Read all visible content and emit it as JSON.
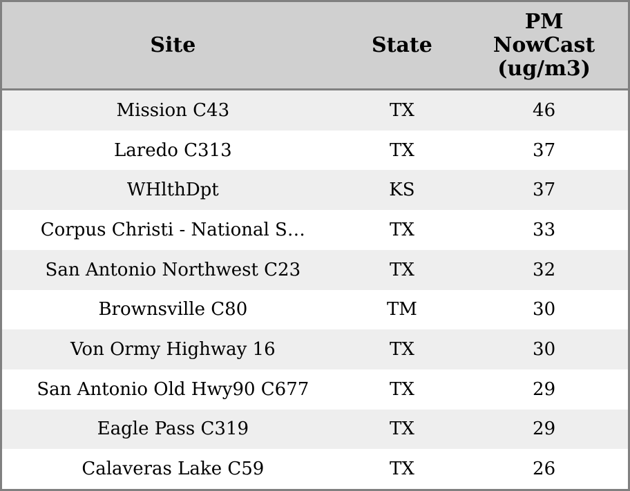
{
  "colors": {
    "border": "#808080",
    "header_bg": "#d0d0d0",
    "stripe": "#eeeeee",
    "row_bg": "#ffffff",
    "text": "#000000"
  },
  "table": {
    "columns": [
      {
        "key": "site",
        "label": "Site",
        "label_lines": [
          "Site"
        ]
      },
      {
        "key": "state",
        "label": "State",
        "label_lines": [
          "State"
        ]
      },
      {
        "key": "pm",
        "label": "PM NowCast (ug/m3)",
        "label_lines": [
          "PM",
          "NowCast",
          "(ug/m3)"
        ]
      }
    ],
    "rows": [
      {
        "site": "Mission C43",
        "state": "TX",
        "pm": "46"
      },
      {
        "site": "Laredo C313",
        "state": "TX",
        "pm": "37"
      },
      {
        "site": "WHlthDpt",
        "state": "KS",
        "pm": "37"
      },
      {
        "site": "Corpus Christi - National S…",
        "state": "TX",
        "pm": "33"
      },
      {
        "site": "San Antonio Northwest C23",
        "state": "TX",
        "pm": "32"
      },
      {
        "site": "Brownsville C80",
        "state": "TM",
        "pm": "30"
      },
      {
        "site": "Von Ormy Highway 16",
        "state": "TX",
        "pm": "30"
      },
      {
        "site": "San Antonio Old Hwy90 C677",
        "state": "TX",
        "pm": "29"
      },
      {
        "site": "Eagle Pass C319",
        "state": "TX",
        "pm": "29"
      },
      {
        "site": "Calaveras Lake C59",
        "state": "TX",
        "pm": "26"
      }
    ]
  },
  "chart_data": {
    "type": "table",
    "title": "",
    "columns": [
      "Site",
      "State",
      "PM NowCast (ug/m3)"
    ],
    "rows": [
      [
        "Mission C43",
        "TX",
        46
      ],
      [
        "Laredo C313",
        "TX",
        37
      ],
      [
        "WHlthDpt",
        "KS",
        37
      ],
      [
        "Corpus Christi - National S…",
        "TX",
        33
      ],
      [
        "San Antonio Northwest C23",
        "TX",
        32
      ],
      [
        "Brownsville C80",
        "TM",
        30
      ],
      [
        "Von Ormy Highway 16",
        "TX",
        30
      ],
      [
        "San Antonio Old Hwy90 C677",
        "TX",
        29
      ],
      [
        "Eagle Pass C319",
        "TX",
        29
      ],
      [
        "Calaveras Lake C59",
        "TX",
        26
      ]
    ]
  }
}
